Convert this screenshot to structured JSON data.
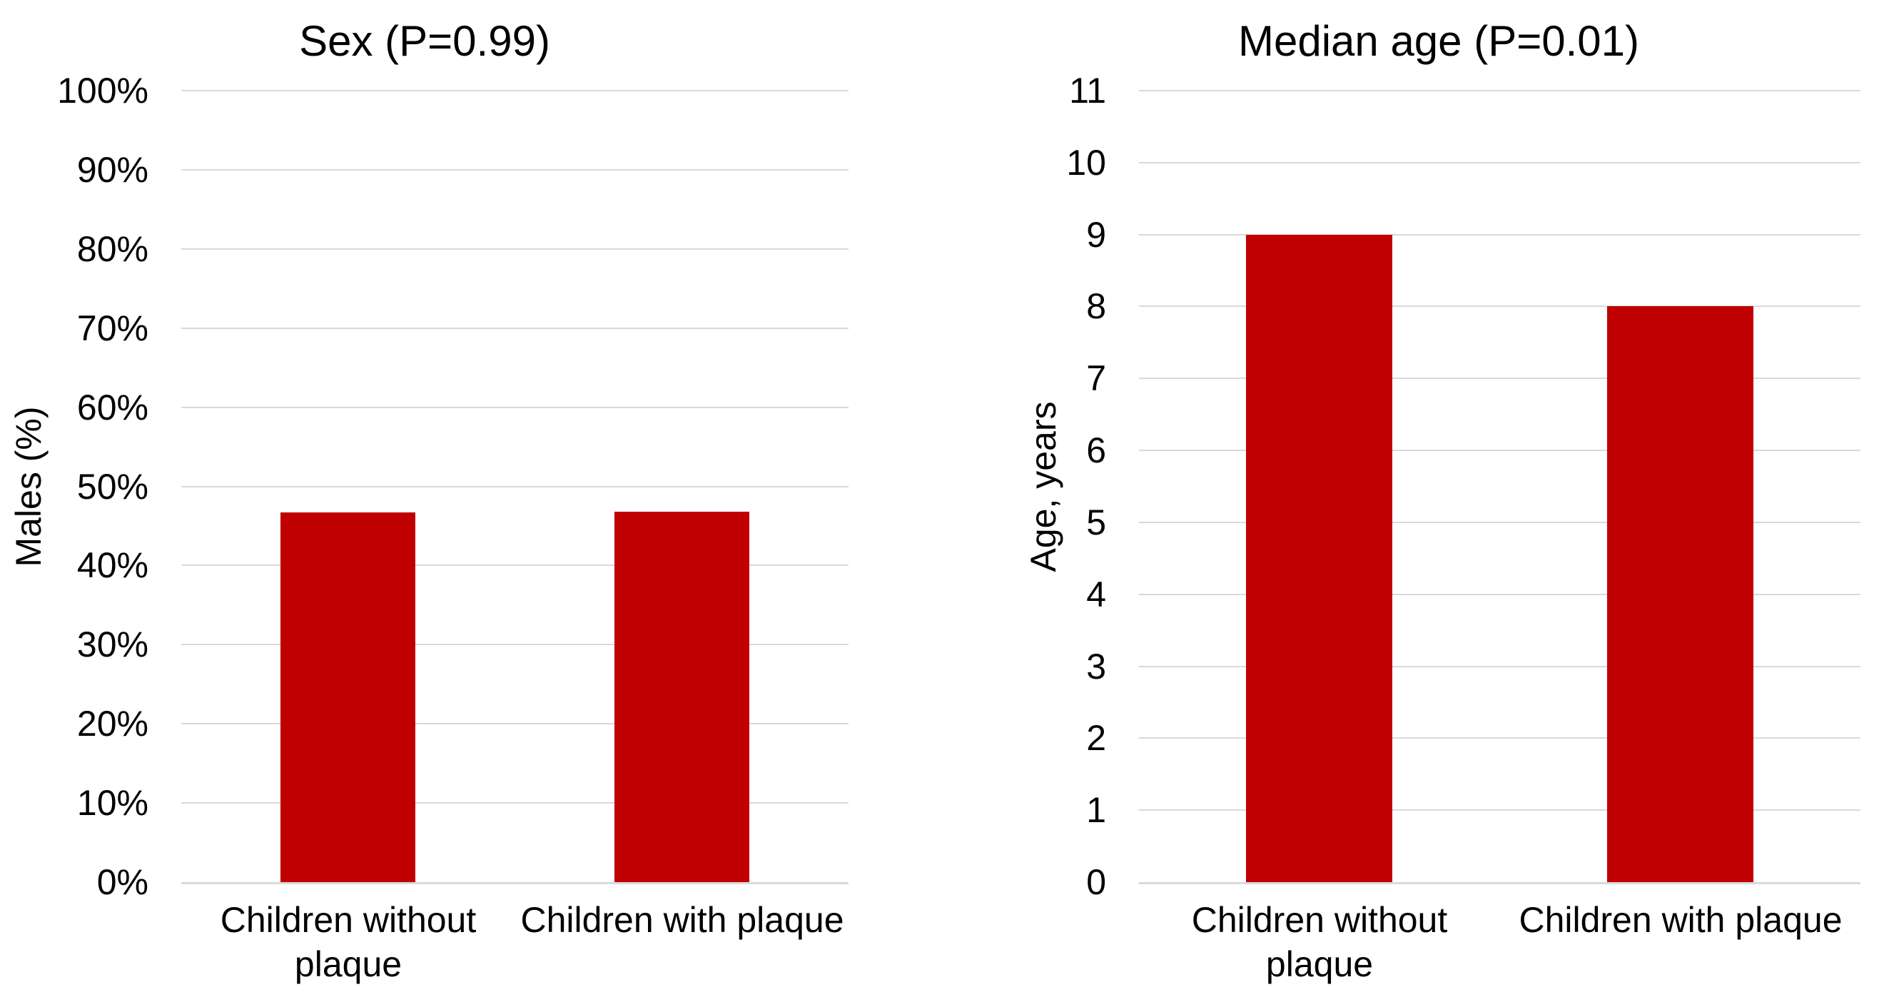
{
  "figure": {
    "background": "#FFFFFF",
    "bar_color": "#C00000",
    "gridline_color": "#D9D9D9",
    "axis_line_color": "#D9D9D9",
    "text_color": "#000000"
  },
  "chart_data": [
    {
      "type": "bar",
      "title": "Sex (P=0.99)",
      "ylabel": "Males (%)",
      "xlabel": "",
      "categories": [
        "Children without plaque",
        "Children with plaque"
      ],
      "values": [
        46.7,
        46.8
      ],
      "ylim": [
        0,
        100
      ],
      "ytick_step": 10,
      "ytick_labels": [
        "0%",
        "10%",
        "20%",
        "30%",
        "40%",
        "50%",
        "60%",
        "70%",
        "80%",
        "90%",
        "100%"
      ],
      "grid": true,
      "legend": "none"
    },
    {
      "type": "bar",
      "title": "Median age (P=0.01)",
      "ylabel": "Age, years",
      "xlabel": "",
      "categories": [
        "Children without plaque",
        "Children with plaque"
      ],
      "values": [
        9,
        8
      ],
      "ylim": [
        0,
        11
      ],
      "ytick_step": 1,
      "ytick_labels": [
        "0",
        "1",
        "2",
        "3",
        "4",
        "5",
        "6",
        "7",
        "8",
        "9",
        "10",
        "11"
      ],
      "grid": true,
      "legend": "none"
    }
  ]
}
